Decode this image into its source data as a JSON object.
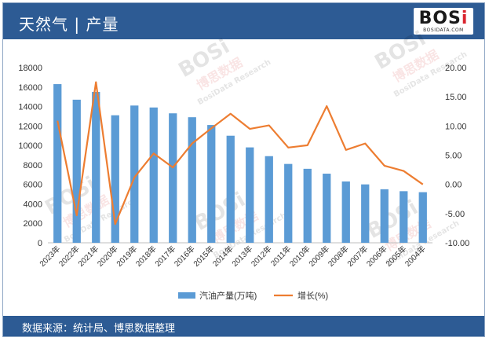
{
  "header": {
    "title": "天然气 | 产量",
    "logo_main": "BOS",
    "logo_accent": "i",
    "logo_sub": "BOSIDATA.COM"
  },
  "footer": {
    "source": "数据来源：统计局、博思数据整理"
  },
  "watermark": {
    "brand": "BOSi",
    "cn": "博思数据",
    "en": "BosiData Research"
  },
  "colors": {
    "header_bg": "#2d5b94",
    "bar": "#5b9bd5",
    "line": "#ed7d31"
  },
  "chart_data": {
    "type": "bar",
    "categories": [
      "2023年",
      "2022年",
      "2021年",
      "2020年",
      "2019年",
      "2018年",
      "2017年",
      "2016年",
      "2015年",
      "2014年",
      "2013年",
      "2012年",
      "2011年",
      "2010年",
      "2009年",
      "2008年",
      "2007年",
      "2006年",
      "2005年",
      "2004年"
    ],
    "series": [
      {
        "name": "汽油产量(万吨)",
        "type": "bar",
        "axis": "left",
        "values": [
          16300,
          14700,
          15500,
          13100,
          14100,
          13900,
          13300,
          12900,
          12100,
          11000,
          9800,
          8900,
          8100,
          7600,
          7100,
          6300,
          6000,
          5500,
          5300,
          5200
        ]
      },
      {
        "name": "增长(%)",
        "type": "line",
        "axis": "right",
        "values": [
          10.9,
          -5.3,
          17.5,
          -6.8,
          1.2,
          5.3,
          2.9,
          7.0,
          9.6,
          12.1,
          9.5,
          10.1,
          6.3,
          6.7,
          13.4,
          5.9,
          7.0,
          3.2,
          2.3,
          0.0
        ]
      }
    ],
    "y_left": {
      "ylim": [
        0,
        18000
      ],
      "ticks": [
        "0",
        "2000",
        "4000",
        "6000",
        "8000",
        "10000",
        "12000",
        "14000",
        "16000",
        "18000"
      ]
    },
    "y_right": {
      "ylim": [
        -10,
        20
      ],
      "ticks": [
        "-10.00",
        "-5.00",
        "0.00",
        "5.00",
        "10.00",
        "15.00",
        "20.00"
      ]
    },
    "grid": false,
    "legend_position": "bottom"
  }
}
